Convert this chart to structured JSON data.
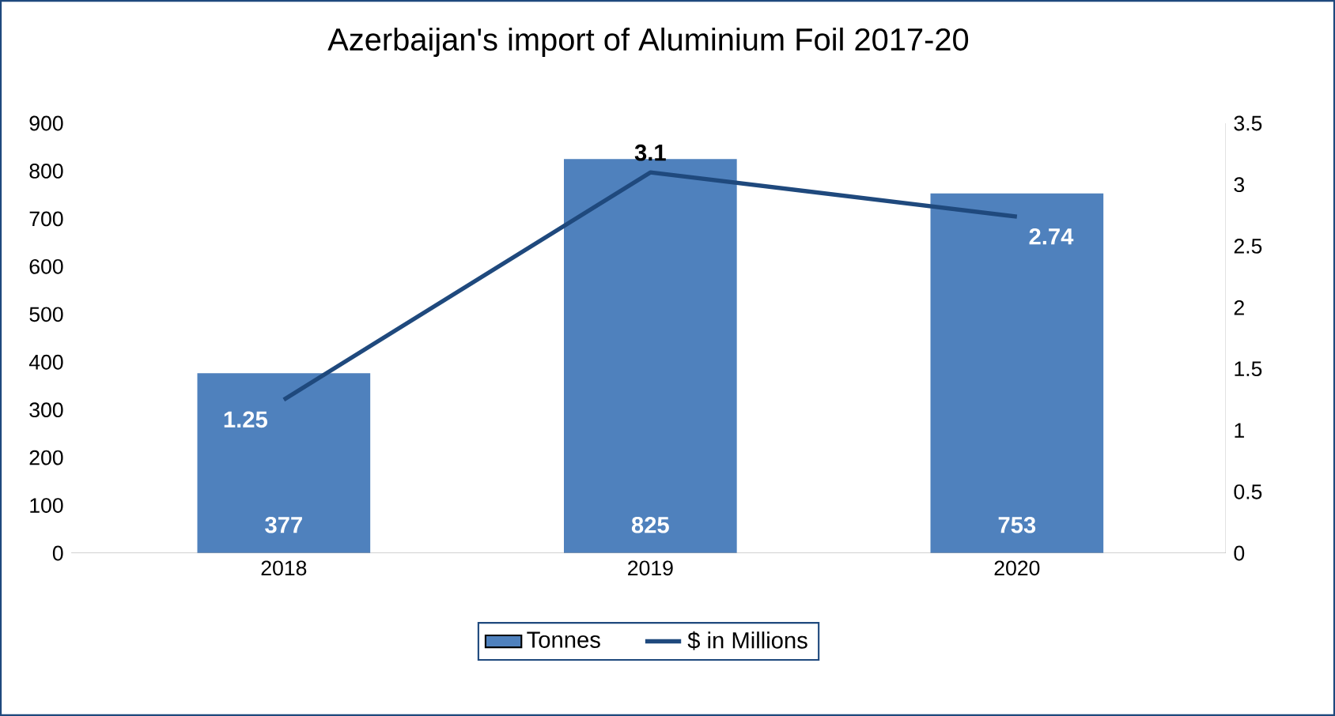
{
  "chart_data": {
    "type": "bar",
    "title": "Azerbaijan's import of Aluminium Foil 2017-20",
    "categories": [
      "2018",
      "2019",
      "2020"
    ],
    "series": [
      {
        "name": "Tonnes",
        "color": "#4f81bd",
        "values": [
          377,
          825,
          753
        ]
      },
      {
        "name": "$ in Millions",
        "type": "line",
        "axis": "y2",
        "color": "#1f497d",
        "values": [
          1.25,
          3.1,
          2.74
        ]
      }
    ],
    "ylim": [
      0,
      900
    ],
    "yticks": [
      0,
      100,
      200,
      300,
      400,
      500,
      600,
      700,
      800,
      900
    ],
    "y2lim": [
      0,
      3.5
    ],
    "y2ticks": [
      0,
      0.5,
      1,
      1.5,
      2,
      2.5,
      3,
      3.5
    ],
    "data_labels": true,
    "legend": "bottom"
  }
}
